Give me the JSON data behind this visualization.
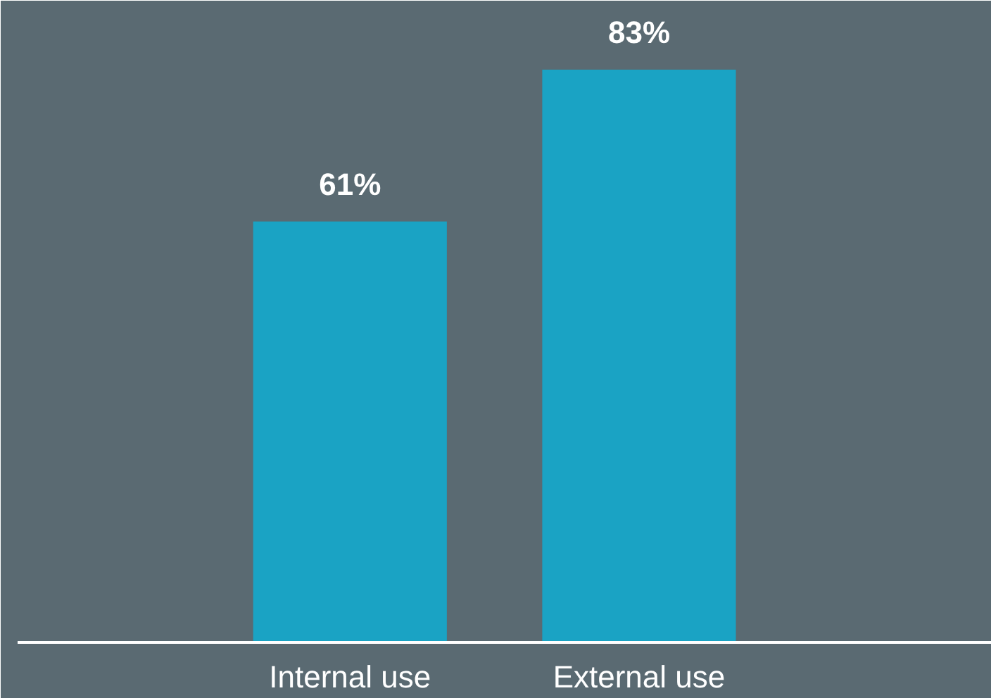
{
  "chart_data": {
    "type": "bar",
    "categories": [
      "Internal use",
      "External use"
    ],
    "values": [
      61,
      83
    ],
    "value_labels": [
      "61%",
      "83%"
    ],
    "color": "#1aa3c4",
    "ylim": [
      0,
      93
    ],
    "grid": false
  }
}
